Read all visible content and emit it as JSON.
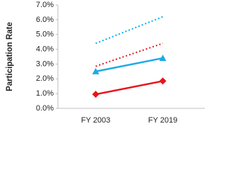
{
  "chart_data": {
    "type": "line",
    "y_label": "Participation Rate",
    "categories": [
      "FY 2003",
      "FY 2019"
    ],
    "series": [
      {
        "color": "#00b0f0",
        "line_style": "dotted",
        "marker": "none",
        "values": [
          4.4,
          6.2
        ]
      },
      {
        "color": "#e8141c",
        "line_style": "dotted",
        "marker": "none",
        "values": [
          2.85,
          4.4
        ]
      },
      {
        "color": "#1fa9e6",
        "line_style": "solid",
        "marker": "triangle",
        "values": [
          2.5,
          3.4
        ]
      },
      {
        "color": "#e8141c",
        "line_style": "solid",
        "marker": "diamond",
        "values": [
          0.95,
          1.85
        ]
      }
    ],
    "ylim": [
      0,
      7
    ],
    "yticks": [
      {
        "value": 0,
        "label": "0.0%"
      },
      {
        "value": 1,
        "label": "1.0%"
      },
      {
        "value": 2,
        "label": "2.0%"
      },
      {
        "value": 3,
        "label": "3.0%"
      },
      {
        "value": 4,
        "label": "4.0%"
      },
      {
        "value": 5,
        "label": "5.0%"
      },
      {
        "value": 6,
        "label": "6.0%"
      },
      {
        "value": 7,
        "label": "7.0%"
      }
    ],
    "grid": false
  }
}
